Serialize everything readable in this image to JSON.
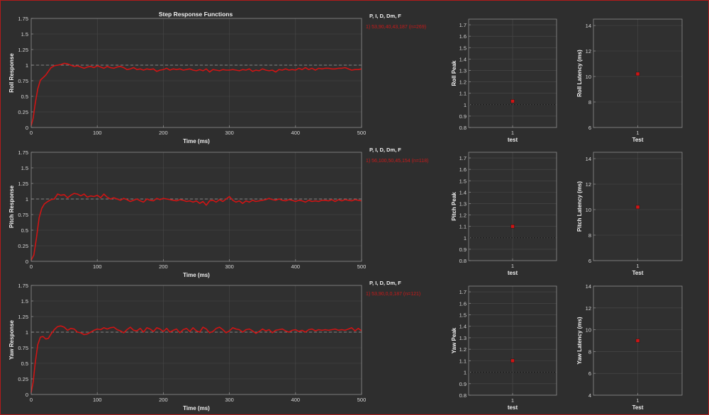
{
  "colors": {
    "background": "#2e2e2e",
    "plot_bg": "#303030",
    "grid": "#4a4a4a",
    "axis": "#8c8c8c",
    "tick_text": "#d8d8d8",
    "label_text": "#f0f0f0",
    "trace": "#d11414",
    "legend_red": "#c91a1a",
    "reference": "#9a9a9a",
    "frame": "#b11a1a"
  },
  "step_title": "Step Response Functions",
  "chart_data": [
    {
      "id": "roll-step",
      "type": "line",
      "title": "Step Response Functions",
      "xlabel": "Time (ms)",
      "ylabel": "Roll Response",
      "xlim": [
        0,
        500
      ],
      "ylim": [
        0,
        1.75
      ],
      "xticks": [
        "0",
        "100",
        "200",
        "300",
        "400",
        "500"
      ],
      "yticks": [
        "0",
        "0.25",
        "0.5",
        "0.75",
        "1",
        "1.25",
        "1.5",
        "1.75"
      ],
      "grid": true,
      "reference_line": 1,
      "legend_header": "P, I, D, Dm, F",
      "legend_entry": "1) 53,90,40,43,187  (n=269)",
      "series": [
        {
          "x": [
            0,
            3,
            6,
            10,
            14,
            18,
            22,
            26,
            30,
            35,
            40,
            45,
            50,
            55,
            60,
            65,
            70,
            75,
            80,
            85,
            90,
            95,
            100,
            105,
            110,
            115,
            120,
            125,
            130,
            135,
            140,
            145,
            150,
            155,
            160,
            165,
            170,
            175,
            180,
            185,
            190,
            195,
            200,
            205,
            210,
            215,
            220,
            225,
            230,
            235,
            240,
            245,
            250,
            255,
            260,
            265,
            270,
            275,
            280,
            285,
            290,
            295,
            300,
            305,
            310,
            315,
            320,
            325,
            330,
            335,
            340,
            345,
            350,
            355,
            360,
            365,
            370,
            375,
            380,
            385,
            390,
            395,
            400,
            405,
            410,
            415,
            420,
            425,
            430,
            435,
            440,
            445,
            450,
            455,
            460,
            465,
            470,
            475,
            480,
            485,
            490,
            495,
            500
          ],
          "y": [
            0.03,
            0.15,
            0.38,
            0.62,
            0.76,
            0.8,
            0.84,
            0.9,
            0.96,
            0.99,
            1.0,
            1.01,
            1.03,
            1.02,
            1.0,
            0.98,
            0.99,
            0.97,
            0.95,
            0.97,
            0.98,
            0.96,
            0.99,
            0.97,
            0.95,
            0.98,
            0.96,
            0.95,
            0.97,
            0.98,
            0.96,
            0.93,
            0.94,
            0.96,
            0.93,
            0.94,
            0.92,
            0.94,
            0.93,
            0.94,
            0.9,
            0.92,
            0.93,
            0.95,
            0.92,
            0.94,
            0.93,
            0.94,
            0.92,
            0.93,
            0.94,
            0.92,
            0.91,
            0.93,
            0.91,
            0.94,
            0.89,
            0.93,
            0.92,
            0.91,
            0.93,
            0.92,
            0.92,
            0.93,
            0.92,
            0.91,
            0.93,
            0.92,
            0.94,
            0.9,
            0.92,
            0.91,
            0.94,
            0.92,
            0.91,
            0.92,
            0.89,
            0.93,
            0.92,
            0.94,
            0.92,
            0.93,
            0.92,
            0.95,
            0.93,
            0.96,
            0.93,
            0.95,
            0.92,
            0.95,
            0.94,
            0.95,
            0.95,
            0.94,
            0.94,
            0.95,
            0.95,
            0.96,
            0.94,
            0.92,
            0.93,
            0.93,
            0.94
          ]
        }
      ]
    },
    {
      "id": "pitch-step",
      "type": "line",
      "xlabel": "Time (ms)",
      "ylabel": "Pitch Response",
      "xlim": [
        0,
        500
      ],
      "ylim": [
        0,
        1.75
      ],
      "xticks": [
        "0",
        "100",
        "200",
        "300",
        "400",
        "500"
      ],
      "yticks": [
        "0",
        "0.25",
        "0.5",
        "0.75",
        "1",
        "1.25",
        "1.5",
        "1.75"
      ],
      "grid": true,
      "reference_line": 1,
      "legend_header": "P, I, D, Dm, F",
      "legend_entry": "1) 56,100,50,45,154  (n=118)",
      "series": [
        {
          "x": [
            0,
            4,
            8,
            12,
            16,
            20,
            25,
            30,
            35,
            40,
            45,
            50,
            55,
            60,
            65,
            70,
            75,
            80,
            85,
            90,
            95,
            100,
            105,
            110,
            115,
            120,
            125,
            130,
            135,
            140,
            145,
            150,
            155,
            160,
            165,
            170,
            175,
            180,
            185,
            190,
            195,
            200,
            205,
            210,
            215,
            220,
            225,
            230,
            235,
            240,
            245,
            250,
            255,
            260,
            265,
            270,
            275,
            280,
            285,
            290,
            295,
            300,
            305,
            310,
            315,
            320,
            325,
            330,
            335,
            340,
            345,
            350,
            355,
            360,
            365,
            370,
            375,
            380,
            385,
            390,
            395,
            400,
            405,
            410,
            415,
            420,
            425,
            430,
            435,
            440,
            445,
            450,
            455,
            460,
            465,
            470,
            475,
            480,
            485,
            490,
            495,
            500
          ],
          "y": [
            0.02,
            0.1,
            0.38,
            0.7,
            0.85,
            0.92,
            0.96,
            0.99,
            1.0,
            1.08,
            1.06,
            1.07,
            1.02,
            1.06,
            1.09,
            1.08,
            1.05,
            1.08,
            1.03,
            1.05,
            1.04,
            1.06,
            1.02,
            1.08,
            1.03,
            1.0,
            1.02,
            1.0,
            0.98,
            1.01,
            0.99,
            0.96,
            0.98,
            1.0,
            0.97,
            0.95,
            1.0,
            0.98,
            0.97,
            1.01,
            0.99,
            1.01,
            1.0,
            0.99,
            0.98,
            0.97,
            0.99,
            0.98,
            0.96,
            0.97,
            0.95,
            0.97,
            0.93,
            0.96,
            0.9,
            0.97,
            0.98,
            0.95,
            0.99,
            0.96,
            1.0,
            1.04,
            0.98,
            0.95,
            0.97,
            0.93,
            0.97,
            0.95,
            0.98,
            0.96,
            0.97,
            0.98,
            0.99,
            1.01,
            0.99,
            0.98,
            1.0,
            0.98,
            0.97,
            0.99,
            0.98,
            0.96,
            0.98,
            0.97,
            0.95,
            0.98,
            0.96,
            0.97,
            0.96,
            0.98,
            0.98,
            0.97,
            0.99,
            0.96,
            0.99,
            0.97,
            0.99,
            0.98,
            0.97,
            0.99,
            0.98,
            0.97
          ]
        }
      ]
    },
    {
      "id": "yaw-step",
      "type": "line",
      "xlabel": "Time (ms)",
      "ylabel": "Yaw Response",
      "xlim": [
        0,
        500
      ],
      "ylim": [
        0,
        1.75
      ],
      "xticks": [
        "0",
        "100",
        "200",
        "300",
        "400",
        "500"
      ],
      "yticks": [
        "0",
        "0.25",
        "0.5",
        "0.75",
        "1",
        "1.25",
        "1.5",
        "1.75"
      ],
      "grid": true,
      "reference_line": 1,
      "legend_header": "P, I, D, Dm, F",
      "legend_entry": "1) 53,90,0,0,187  (n=121)",
      "series": [
        {
          "x": [
            0,
            3,
            6,
            10,
            14,
            18,
            22,
            26,
            30,
            35,
            40,
            45,
            50,
            55,
            60,
            65,
            70,
            75,
            80,
            85,
            90,
            95,
            100,
            105,
            110,
            115,
            120,
            125,
            130,
            135,
            140,
            145,
            150,
            155,
            160,
            165,
            170,
            175,
            180,
            185,
            190,
            195,
            200,
            205,
            210,
            215,
            220,
            225,
            230,
            235,
            240,
            245,
            250,
            255,
            260,
            265,
            270,
            275,
            280,
            285,
            290,
            295,
            300,
            305,
            310,
            315,
            320,
            325,
            330,
            335,
            340,
            345,
            350,
            355,
            360,
            365,
            370,
            375,
            380,
            385,
            390,
            395,
            400,
            405,
            410,
            415,
            420,
            425,
            430,
            435,
            440,
            445,
            450,
            455,
            460,
            465,
            470,
            475,
            480,
            485,
            490,
            495,
            500
          ],
          "y": [
            0.03,
            0.2,
            0.5,
            0.8,
            0.92,
            0.93,
            0.89,
            0.9,
            0.97,
            1.04,
            1.09,
            1.1,
            1.08,
            1.03,
            1.06,
            1.05,
            1.0,
            0.99,
            0.96,
            0.97,
            1.0,
            1.03,
            1.05,
            1.04,
            1.07,
            1.05,
            1.07,
            1.08,
            1.04,
            1.02,
            0.99,
            1.04,
            1.08,
            1.03,
            1.02,
            1.06,
            1.0,
            1.07,
            1.05,
            1.01,
            1.07,
            1.05,
            1.01,
            1.06,
            1.0,
            1.03,
            1.05,
            0.99,
            1.04,
            1.06,
            1.01,
            1.07,
            1.02,
            1.0,
            1.08,
            1.05,
            0.99,
            1.01,
            1.06,
            1.08,
            1.04,
            0.99,
            1.02,
            1.07,
            1.05,
            1.04,
            1.0,
            1.04,
            1.05,
            1.02,
            0.98,
            1.01,
            1.05,
            1.02,
            1.04,
            0.99,
            1.03,
            1.04,
            1.05,
            1.02,
            1.0,
            1.03,
            1.04,
            1.01,
            1.03,
            1.0,
            1.04,
            1.05,
            1.02,
            1.04,
            1.03,
            1.04,
            1.03,
            1.04,
            1.05,
            1.03,
            1.04,
            1.03,
            1.05,
            1.07,
            1.02,
            1.06,
            1.02
          ]
        }
      ]
    },
    {
      "id": "roll-peak",
      "type": "scatter",
      "xlabel": "test",
      "ylabel": "Roll Peak",
      "categories": [
        "1"
      ],
      "values": [
        1.03
      ],
      "ylim": [
        0.8,
        1.75
      ],
      "yticks": [
        "0.8",
        "0.9",
        "1",
        "1.1",
        "1.2",
        "1.3",
        "1.4",
        "1.5",
        "1.6",
        "1.7"
      ],
      "reference_line": 1,
      "grid": true
    },
    {
      "id": "roll-latency",
      "type": "scatter",
      "xlabel": "Test",
      "ylabel": "Roll Latency (ms)",
      "categories": [
        "1"
      ],
      "values": [
        10.2
      ],
      "ylim": [
        6,
        14.5
      ],
      "yticks": [
        "6",
        "8",
        "10",
        "12",
        "14"
      ],
      "grid": true
    },
    {
      "id": "pitch-peak",
      "type": "scatter",
      "xlabel": "test",
      "ylabel": "Pitch Peak",
      "categories": [
        "1"
      ],
      "values": [
        1.1
      ],
      "ylim": [
        0.8,
        1.75
      ],
      "yticks": [
        "0.8",
        "0.9",
        "1",
        "1.1",
        "1.2",
        "1.3",
        "1.4",
        "1.5",
        "1.6",
        "1.7"
      ],
      "reference_line": 1,
      "grid": true
    },
    {
      "id": "pitch-latency",
      "type": "scatter",
      "xlabel": "Test",
      "ylabel": "Pitch Latency (ms)",
      "categories": [
        "1"
      ],
      "values": [
        10.2
      ],
      "ylim": [
        6,
        14.5
      ],
      "yticks": [
        "6",
        "8",
        "10",
        "12",
        "14"
      ],
      "grid": true
    },
    {
      "id": "yaw-peak",
      "type": "scatter",
      "xlabel": "test",
      "ylabel": "Yaw Peak",
      "categories": [
        "1"
      ],
      "values": [
        1.1
      ],
      "ylim": [
        0.8,
        1.75
      ],
      "yticks": [
        "0.8",
        "0.9",
        "1",
        "1.1",
        "1.2",
        "1.3",
        "1.4",
        "1.5",
        "1.6",
        "1.7"
      ],
      "reference_line": 1,
      "grid": true
    },
    {
      "id": "yaw-latency",
      "type": "scatter",
      "xlabel": "Test",
      "ylabel": "Yaw Latency (ms)",
      "categories": [
        "1"
      ],
      "values": [
        9.0
      ],
      "ylim": [
        4,
        14
      ],
      "yticks": [
        "4",
        "6",
        "8",
        "10",
        "12",
        "14"
      ],
      "grid": true
    }
  ]
}
